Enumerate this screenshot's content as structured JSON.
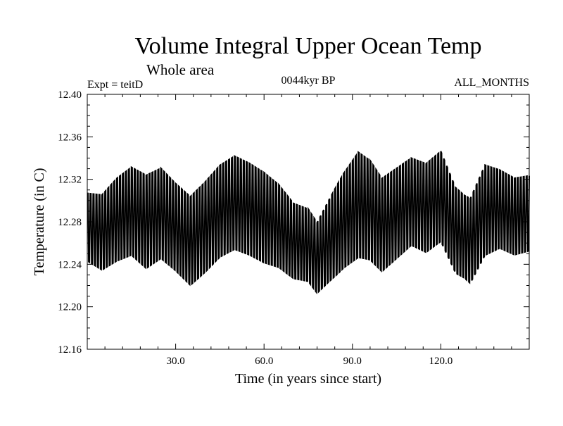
{
  "chart_data": {
    "type": "line",
    "title": "Volume Integral Upper Ocean Temp",
    "subtitle": "Whole area",
    "experiment_label": "Expt = teitD",
    "period_label": "0044kyr BP",
    "months_label": "ALL_MONTHS",
    "xlabel": "Time (in years since start)",
    "ylabel": "Temperature (in C)",
    "xlim": [
      0,
      150
    ],
    "ylim": [
      12.16,
      12.4
    ],
    "x_ticks": [
      30,
      60,
      90,
      120
    ],
    "x_tick_labels": [
      "30.0",
      "60.0",
      "90.0",
      "120.0"
    ],
    "y_ticks": [
      12.16,
      12.2,
      12.24,
      12.28,
      12.32,
      12.36,
      12.4
    ],
    "y_tick_labels": [
      "12.16",
      "12.20",
      "12.24",
      "12.28",
      "12.32",
      "12.36",
      "12.40"
    ],
    "seasonal_cycles_per_year": 1,
    "samples_per_year": 4,
    "series": [
      {
        "name": "Volume integral upper ocean temperature",
        "color": "#000000",
        "annual_mean_x": [
          0,
          5,
          10,
          15,
          20,
          25,
          30,
          35,
          40,
          45,
          50,
          55,
          60,
          65,
          70,
          75,
          78,
          82,
          87,
          92,
          96,
          100,
          105,
          110,
          115,
          120,
          125,
          130,
          135,
          140,
          145,
          150
        ],
        "annual_mean_y": [
          12.275,
          12.27,
          12.282,
          12.29,
          12.28,
          12.288,
          12.275,
          12.262,
          12.275,
          12.29,
          12.298,
          12.292,
          12.284,
          12.276,
          12.262,
          12.258,
          12.246,
          12.262,
          12.281,
          12.296,
          12.291,
          12.277,
          12.288,
          12.299,
          12.293,
          12.304,
          12.272,
          12.262,
          12.291,
          12.292,
          12.285,
          12.288
        ],
        "amplitude_x": [
          0,
          10,
          20,
          30,
          40,
          50,
          60,
          70,
          78,
          85,
          92,
          100,
          110,
          120,
          128,
          135,
          140,
          150
        ],
        "amplitude_y": [
          0.045,
          0.055,
          0.062,
          0.058,
          0.06,
          0.062,
          0.06,
          0.05,
          0.047,
          0.06,
          0.07,
          0.062,
          0.058,
          0.06,
          0.055,
          0.06,
          0.052,
          0.05
        ]
      }
    ]
  }
}
